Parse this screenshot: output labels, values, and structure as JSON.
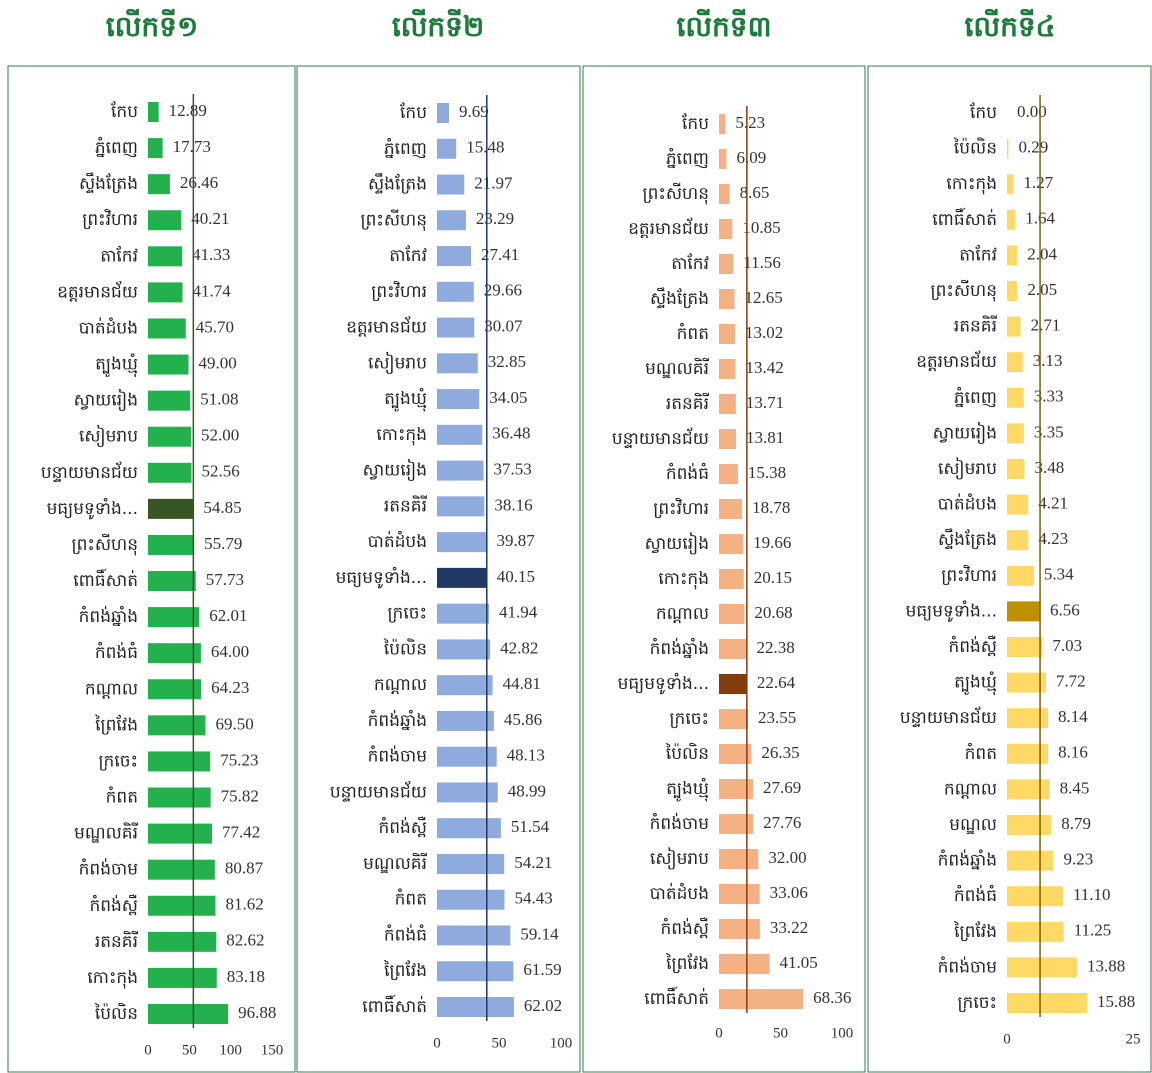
{
  "chart_data": [
    {
      "type": "bar",
      "orientation": "horizontal",
      "title": "លើកទី១",
      "color": "#22b14c",
      "highlight_index": 11,
      "highlight_color": "#375623",
      "reference_line": 54.85,
      "reference_color": "#375623",
      "categories": [
        "កែប",
        "ភ្នំពេញ",
        "ស្ទឹងត្រែង",
        "ព្រះវិហារ",
        "តាកែវ",
        "ឧត្តរមានជ័យ",
        "បាត់ដំបង",
        "ត្បូងឃ្មុំ",
        "ស្វាយរៀង",
        "សៀមរាប",
        "បន្ទាយមានជ័យ",
        "មធ្យមទូទាំង...",
        "ព្រះសីហនុ",
        "ពោធិ៍សាត់",
        "កំពង់ឆ្នាំង",
        "កំពង់ធំ",
        "កណ្ដាល",
        "ព្រៃវែង",
        "ក្រចេះ",
        "កំពត",
        "មណ្ឌលគិរី",
        "កំពង់ចាម",
        "កំពង់ស្ពឺ",
        "រតនគិរី",
        "កោះកុង",
        "ប៉ៃលិន"
      ],
      "values": [
        12.89,
        17.73,
        26.46,
        40.21,
        41.33,
        41.74,
        45.7,
        49,
        51.08,
        52,
        52.56,
        54.85,
        55.79,
        57.73,
        62.01,
        64,
        64.23,
        69.5,
        75.23,
        75.82,
        77.42,
        80.87,
        81.62,
        82.62,
        83.18,
        96.88
      ],
      "value_labels": [
        "12.89",
        "17.73",
        "26.46",
        "40.21",
        "41.33",
        "41.74",
        "45.70",
        "49.00",
        "51.08",
        "52.00",
        "52.56",
        "54.85",
        "55.79",
        "57.73",
        "62.01",
        "64.00",
        "64.23",
        "69.50",
        "75.23",
        "75.82",
        "77.42",
        "80.87",
        "81.62",
        "82.62",
        "83.18",
        "96.88"
      ],
      "xlim": [
        0,
        150
      ],
      "xticks": [
        0,
        50,
        100,
        150
      ]
    },
    {
      "type": "bar",
      "orientation": "horizontal",
      "title": "លើកទី២",
      "color": "#8faadc",
      "highlight_index": 13,
      "highlight_color": "#1f3864",
      "reference_line": 40.15,
      "reference_color": "#1f3864",
      "categories": [
        "កែប",
        "ភ្នំពេញ",
        "ស្ទឹងត្រែង",
        "ព្រះសីហនុ",
        "តាកែវ",
        "ព្រះវិហារ",
        "ឧត្តរមានជ័យ",
        "សៀមរាប",
        "ត្បូងឃ្មុំ",
        "កោះកុង",
        "ស្វាយរៀង",
        "រតនគិរី",
        "បាត់ដំបង",
        "មធ្យមទូទាំង...",
        "ក្រចេះ",
        "ប៉ៃលិន",
        "កណ្ដាល",
        "កំពង់ឆ្នាំង",
        "កំពង់ចាម",
        "បន្ទាយមានជ័យ",
        "កំពង់ស្ពឺ",
        "មណ្ឌលគិរី",
        "កំពត",
        "កំពង់ធំ",
        "ព្រៃវែង",
        "ពោធិ៍សាត់"
      ],
      "values": [
        9.69,
        15.48,
        21.97,
        23.29,
        27.41,
        29.66,
        30.07,
        32.85,
        34.05,
        36.48,
        37.53,
        38.16,
        39.87,
        40.15,
        41.94,
        42.82,
        44.81,
        45.86,
        48.13,
        48.99,
        51.54,
        54.21,
        54.43,
        59.14,
        61.59,
        62.02
      ],
      "xlim": [
        0,
        100
      ],
      "xticks": [
        0,
        50,
        100
      ]
    },
    {
      "type": "bar",
      "orientation": "horizontal",
      "title": "លើកទី៣",
      "color": "#f4b183",
      "highlight_index": 16,
      "highlight_color": "#843c0c",
      "reference_line": 22.64,
      "reference_color": "#843c0c",
      "categories": [
        "កែប",
        "ភ្នំពេញ",
        "ព្រះសីហនុ",
        "ឧត្តរមានជ័យ",
        "តាកែវ",
        "ស្ទឹងត្រែង",
        "កំពត",
        "មណ្ឌលគិរី",
        "រតនគិរី",
        "បន្ទាយមានជ័យ",
        "កំពង់ធំ",
        "ព្រះវិហារ",
        "ស្វាយរៀង",
        "កោះកុង",
        "កណ្ដាល",
        "កំពង់ឆ្នាំង",
        "មធ្យមទូទាំង...",
        "ក្រចេះ",
        "ប៉ៃលិន",
        "ត្បូងឃ្មុំ",
        "កំពង់ចាម",
        "សៀមរាប",
        "បាត់ដំបង",
        "កំពង់ស្ពឺ",
        "ព្រៃវែង",
        "ពោធិ៍សាត់"
      ],
      "values": [
        5.23,
        6.09,
        8.65,
        10.85,
        11.56,
        12.65,
        13.02,
        13.42,
        13.71,
        13.81,
        15.38,
        18.78,
        19.66,
        20.15,
        20.68,
        22.38,
        22.64,
        23.55,
        26.35,
        27.69,
        27.76,
        32,
        33.06,
        33.22,
        41.05,
        68.36
      ],
      "value_labels": [
        "5.23",
        "6.09",
        "8.65",
        "10.85",
        "11.56",
        "12.65",
        "13.02",
        "13.42",
        "13.71",
        "13.81",
        "15.38",
        "18.78",
        "19.66",
        "20.15",
        "20.68",
        "22.38",
        "22.64",
        "23.55",
        "26.35",
        "27.69",
        "27.76",
        "32.00",
        "33.06",
        "33.22",
        "41.05",
        "68.36"
      ],
      "xlim": [
        0,
        100
      ],
      "xticks": [
        0,
        50,
        100
      ]
    },
    {
      "type": "bar",
      "orientation": "horizontal",
      "title": "លើកទី៤",
      "color": "#ffd966",
      "highlight_index": 14,
      "highlight_color": "#bf9000",
      "reference_line": 6.56,
      "reference_color": "#7f6000",
      "categories": [
        "កែប",
        "ប៉ៃលិន",
        "កោះកុង",
        "ពោធិ៍សាត់",
        "តាកែវ",
        "ព្រះសីហនុ",
        "រតនគិរី",
        "ឧត្តរមានជ័យ",
        "ភ្នំពេញ",
        "ស្វាយរៀង",
        "សៀមរាប",
        "បាត់ដំបង",
        "ស្ទឹងត្រែង",
        "ព្រះវិហារ",
        "មធ្យមទូទាំង...",
        "កំពង់ស្ពឺ",
        "ត្បូងឃ្មុំ",
        "បន្ទាយមានជ័យ",
        "កំពត",
        "កណ្ដាល",
        "មណ្ឌល",
        "កំពង់ឆ្នាំង",
        "កំពង់ធំ",
        "ព្រៃវែង",
        "កំពង់ចាម",
        "ក្រចេះ"
      ],
      "values": [
        0,
        0.29,
        1.27,
        1.64,
        2.04,
        2.05,
        2.71,
        3.13,
        3.33,
        3.35,
        3.48,
        4.21,
        4.23,
        5.34,
        6.56,
        7.03,
        7.72,
        8.14,
        8.16,
        8.45,
        8.79,
        9.23,
        11.1,
        11.25,
        13.88,
        15.88
      ],
      "value_labels": [
        "0.00",
        "0.29",
        "1.27",
        "1.64",
        "2.04",
        "2.05",
        "2.71",
        "3.13",
        "3.33",
        "3.35",
        "3.48",
        "4.21",
        "4.23",
        "5.34",
        "6.56",
        "7.03",
        "7.72",
        "8.14",
        "8.16",
        "8.45",
        "8.79",
        "9.23",
        "11.10",
        "11.25",
        "13.88",
        "15.88"
      ],
      "xlim": [
        0,
        25
      ],
      "xticks": [
        0,
        25
      ]
    }
  ]
}
